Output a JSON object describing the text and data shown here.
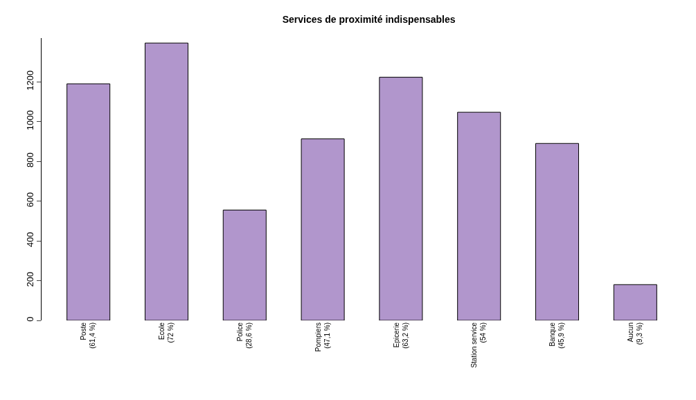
{
  "chart_data": {
    "type": "bar",
    "title": "Services de proximité indispensables",
    "categories": [
      "Poste\n(61,4 %)",
      "Ecole\n(72 %)",
      "Police\n(28,6 %)",
      "Pompiers\n(47,1 %)",
      "Epicerie\n(63,2 %)",
      "Station service\n(54 %)",
      "Banque\n(45,9 %)",
      "Aucun\n(9,3 %)"
    ],
    "values": [
      1190,
      1395,
      555,
      913,
      1223,
      1047,
      890,
      180
    ],
    "color": "#b196cc",
    "ylim": [
      0,
      1420
    ],
    "yticks": [
      0,
      200,
      400,
      600,
      800,
      1000,
      1200
    ]
  }
}
